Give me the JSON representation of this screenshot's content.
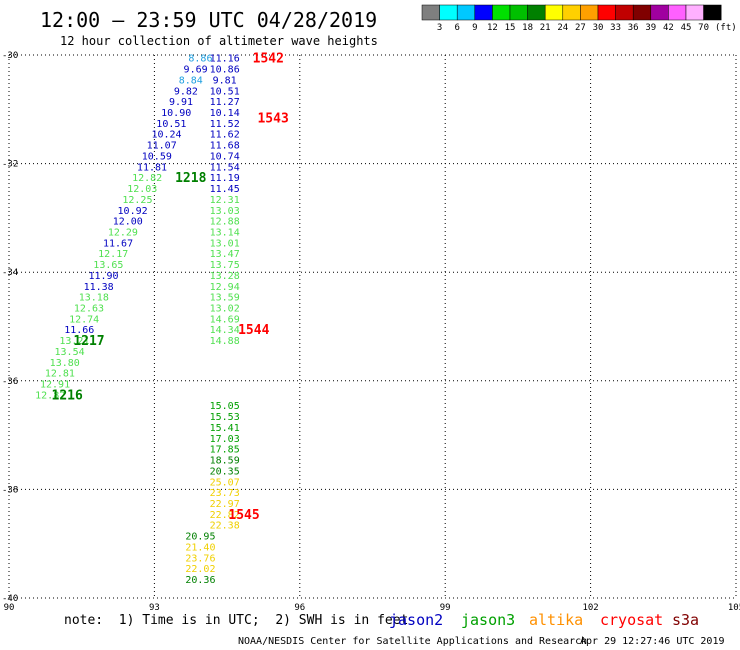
{
  "header": {
    "title": "12:00 – 23:59 UTC 04/28/2019",
    "subtitle": "12 hour collection of altimeter wave heights"
  },
  "legend": {
    "unit": "(ft)",
    "bins": [
      {
        "color": "#7f7f7f",
        "label": "3"
      },
      {
        "color": "#00ffff",
        "label": "6"
      },
      {
        "color": "#00c8ff",
        "label": "9"
      },
      {
        "color": "#0000ff",
        "label": "12"
      },
      {
        "color": "#00e000",
        "label": "15"
      },
      {
        "color": "#00c000",
        "label": "18"
      },
      {
        "color": "#008000",
        "label": "21"
      },
      {
        "color": "#ffff00",
        "label": "24"
      },
      {
        "color": "#ffd000",
        "label": "27"
      },
      {
        "color": "#ffa000",
        "label": "30"
      },
      {
        "color": "#ff0000",
        "label": "33"
      },
      {
        "color": "#c00000",
        "label": "36"
      },
      {
        "color": "#800000",
        "label": "39"
      },
      {
        "color": "#a000a0",
        "label": "42"
      },
      {
        "color": "#ff60ff",
        "label": "45"
      },
      {
        "color": "#ffb0ff",
        "label": "70"
      },
      {
        "color": "#000000",
        "label": ""
      }
    ]
  },
  "map": {
    "xlim": [
      90,
      105
    ],
    "ylim": [
      -40,
      -30
    ],
    "xticks": [
      90,
      93,
      96,
      99,
      102,
      105
    ],
    "yticks": [
      -30,
      -32,
      -34,
      -36,
      -38,
      -40
    ],
    "xtick_labels": [
      "90",
      "93",
      "96",
      "99",
      "102",
      "105"
    ],
    "ytick_labels": [
      "-30",
      "-32",
      "-34",
      "-36",
      "-38",
      "-40"
    ],
    "grid": "dotted"
  },
  "colors": {
    "c_lightblue": "#20a0e0",
    "c_navy": "#0000c0",
    "c_lightgreen": "#50e050",
    "c_green": "#00a000",
    "c_darkgreen": "#008000",
    "c_yellow": "#f0d000",
    "c_orange": "#f09000",
    "c_red": "#ff0000"
  },
  "observations": [
    {
      "lon": 93.95,
      "lat": -30.05,
      "value": "8.86",
      "color": "c_lightblue"
    },
    {
      "lon": 94.45,
      "lat": -30.05,
      "value": "11.16",
      "color": "c_navy"
    },
    {
      "lon": 93.85,
      "lat": -30.25,
      "value": "9.69",
      "color": "c_navy"
    },
    {
      "lon": 94.45,
      "lat": -30.25,
      "value": "10.86",
      "color": "c_navy"
    },
    {
      "lon": 93.75,
      "lat": -30.45,
      "value": "8.84",
      "color": "c_lightblue"
    },
    {
      "lon": 94.45,
      "lat": -30.45,
      "value": "9.81",
      "color": "c_navy"
    },
    {
      "lon": 93.65,
      "lat": -30.65,
      "value": "9.82",
      "color": "c_navy"
    },
    {
      "lon": 94.45,
      "lat": -30.65,
      "value": "10.51",
      "color": "c_navy"
    },
    {
      "lon": 93.55,
      "lat": -30.85,
      "value": "9.91",
      "color": "c_navy"
    },
    {
      "lon": 94.45,
      "lat": -30.85,
      "value": "11.27",
      "color": "c_navy"
    },
    {
      "lon": 93.45,
      "lat": -31.05,
      "value": "10.90",
      "color": "c_navy"
    },
    {
      "lon": 94.45,
      "lat": -31.05,
      "value": "10.14",
      "color": "c_navy"
    },
    {
      "lon": 93.35,
      "lat": -31.25,
      "value": "10.51",
      "color": "c_navy"
    },
    {
      "lon": 94.45,
      "lat": -31.25,
      "value": "11.52",
      "color": "c_navy"
    },
    {
      "lon": 93.25,
      "lat": -31.45,
      "value": "10.24",
      "color": "c_navy"
    },
    {
      "lon": 94.45,
      "lat": -31.45,
      "value": "11.62",
      "color": "c_navy"
    },
    {
      "lon": 93.15,
      "lat": -31.65,
      "value": "11.07",
      "color": "c_navy"
    },
    {
      "lon": 94.45,
      "lat": -31.65,
      "value": "11.68",
      "color": "c_navy"
    },
    {
      "lon": 93.05,
      "lat": -31.85,
      "value": "10.59",
      "color": "c_navy"
    },
    {
      "lon": 94.45,
      "lat": -31.85,
      "value": "10.74",
      "color": "c_navy"
    },
    {
      "lon": 92.95,
      "lat": -32.05,
      "value": "11.81",
      "color": "c_navy"
    },
    {
      "lon": 94.45,
      "lat": -32.05,
      "value": "11.54",
      "color": "c_navy"
    },
    {
      "lon": 92.85,
      "lat": -32.25,
      "value": "12.82",
      "color": "c_lightgreen"
    },
    {
      "lon": 94.45,
      "lat": -32.25,
      "value": "11.19",
      "color": "c_navy"
    },
    {
      "lon": 92.75,
      "lat": -32.45,
      "value": "12.03",
      "color": "c_lightgreen"
    },
    {
      "lon": 94.45,
      "lat": -32.45,
      "value": "11.45",
      "color": "c_navy"
    },
    {
      "lon": 92.65,
      "lat": -32.65,
      "value": "12.25",
      "color": "c_lightgreen"
    },
    {
      "lon": 94.45,
      "lat": -32.65,
      "value": "12.31",
      "color": "c_lightgreen"
    },
    {
      "lon": 92.55,
      "lat": -32.85,
      "value": "10.92",
      "color": "c_navy"
    },
    {
      "lon": 94.45,
      "lat": -32.85,
      "value": "13.03",
      "color": "c_lightgreen"
    },
    {
      "lon": 92.45,
      "lat": -33.05,
      "value": "12.00",
      "color": "c_navy"
    },
    {
      "lon": 94.45,
      "lat": -33.05,
      "value": "12.88",
      "color": "c_lightgreen"
    },
    {
      "lon": 92.35,
      "lat": -33.25,
      "value": "12.29",
      "color": "c_lightgreen"
    },
    {
      "lon": 94.45,
      "lat": -33.25,
      "value": "13.14",
      "color": "c_lightgreen"
    },
    {
      "lon": 92.25,
      "lat": -33.45,
      "value": "11.67",
      "color": "c_navy"
    },
    {
      "lon": 94.45,
      "lat": -33.45,
      "value": "13.01",
      "color": "c_lightgreen"
    },
    {
      "lon": 92.15,
      "lat": -33.65,
      "value": "12.17",
      "color": "c_lightgreen"
    },
    {
      "lon": 94.45,
      "lat": -33.65,
      "value": "13.47",
      "color": "c_lightgreen"
    },
    {
      "lon": 92.05,
      "lat": -33.85,
      "value": "13.65",
      "color": "c_lightgreen"
    },
    {
      "lon": 94.45,
      "lat": -33.85,
      "value": "13.75",
      "color": "c_lightgreen"
    },
    {
      "lon": 91.95,
      "lat": -34.05,
      "value": "11.90",
      "color": "c_navy"
    },
    {
      "lon": 94.45,
      "lat": -34.05,
      "value": "13.28",
      "color": "c_lightgreen"
    },
    {
      "lon": 91.85,
      "lat": -34.25,
      "value": "11.38",
      "color": "c_navy"
    },
    {
      "lon": 94.45,
      "lat": -34.25,
      "value": "12.94",
      "color": "c_lightgreen"
    },
    {
      "lon": 91.75,
      "lat": -34.45,
      "value": "13.18",
      "color": "c_lightgreen"
    },
    {
      "lon": 94.45,
      "lat": -34.45,
      "value": "13.59",
      "color": "c_lightgreen"
    },
    {
      "lon": 91.65,
      "lat": -34.65,
      "value": "12.63",
      "color": "c_lightgreen"
    },
    {
      "lon": 94.45,
      "lat": -34.65,
      "value": "13.02",
      "color": "c_lightgreen"
    },
    {
      "lon": 91.55,
      "lat": -34.85,
      "value": "12.74",
      "color": "c_lightgreen"
    },
    {
      "lon": 94.45,
      "lat": -34.85,
      "value": "14.69",
      "color": "c_lightgreen"
    },
    {
      "lon": 91.45,
      "lat": -35.05,
      "value": "11.66",
      "color": "c_navy"
    },
    {
      "lon": 94.45,
      "lat": -35.05,
      "value": "14.34",
      "color": "c_lightgreen"
    },
    {
      "lon": 91.35,
      "lat": -35.25,
      "value": "13.21",
      "color": "c_lightgreen"
    },
    {
      "lon": 94.45,
      "lat": -35.25,
      "value": "14.88",
      "color": "c_lightgreen"
    },
    {
      "lon": 91.25,
      "lat": -35.45,
      "value": "13.54",
      "color": "c_lightgreen"
    },
    {
      "lon": 91.15,
      "lat": -35.65,
      "value": "13.80",
      "color": "c_lightgreen"
    },
    {
      "lon": 91.05,
      "lat": -35.85,
      "value": "12.81",
      "color": "c_lightgreen"
    },
    {
      "lon": 90.95,
      "lat": -36.05,
      "value": "12.91",
      "color": "c_lightgreen"
    },
    {
      "lon": 90.85,
      "lat": -36.25,
      "value": "12.82",
      "color": "c_lightgreen"
    },
    {
      "lon": 94.45,
      "lat": -36.45,
      "value": "15.05",
      "color": "c_green"
    },
    {
      "lon": 94.45,
      "lat": -36.65,
      "value": "15.53",
      "color": "c_green"
    },
    {
      "lon": 94.45,
      "lat": -36.85,
      "value": "15.41",
      "color": "c_green"
    },
    {
      "lon": 94.45,
      "lat": -37.05,
      "value": "17.03",
      "color": "c_green"
    },
    {
      "lon": 94.45,
      "lat": -37.25,
      "value": "17.85",
      "color": "c_green"
    },
    {
      "lon": 94.45,
      "lat": -37.45,
      "value": "18.59",
      "color": "c_darkgreen"
    },
    {
      "lon": 94.45,
      "lat": -37.65,
      "value": "20.35",
      "color": "c_darkgreen"
    },
    {
      "lon": 94.45,
      "lat": -37.85,
      "value": "25.07",
      "color": "c_yellow"
    },
    {
      "lon": 94.45,
      "lat": -38.05,
      "value": "23.73",
      "color": "c_yellow"
    },
    {
      "lon": 94.45,
      "lat": -38.25,
      "value": "22.97",
      "color": "c_yellow"
    },
    {
      "lon": 94.45,
      "lat": -38.45,
      "value": "22.82",
      "color": "c_yellow"
    },
    {
      "lon": 94.45,
      "lat": -38.65,
      "value": "22.38",
      "color": "c_yellow"
    },
    {
      "lon": 93.95,
      "lat": -38.85,
      "value": "20.95",
      "color": "c_darkgreen"
    },
    {
      "lon": 93.95,
      "lat": -39.05,
      "value": "21.40",
      "color": "c_yellow"
    },
    {
      "lon": 93.95,
      "lat": -39.25,
      "value": "23.76",
      "color": "c_yellow"
    },
    {
      "lon": 93.95,
      "lat": -39.45,
      "value": "22.02",
      "color": "c_yellow"
    },
    {
      "lon": 93.95,
      "lat": -39.65,
      "value": "20.36",
      "color": "c_darkgreen"
    }
  ],
  "pass_labels": [
    {
      "lon": 95.35,
      "lat": -30.05,
      "text": "1542",
      "color": "c_red"
    },
    {
      "lon": 95.45,
      "lat": -31.15,
      "text": "1543",
      "color": "c_red"
    },
    {
      "lon": 93.75,
      "lat": -32.25,
      "text": "1218",
      "color": "c_darkgreen"
    },
    {
      "lon": 91.65,
      "lat": -35.25,
      "text": "1217",
      "color": "c_darkgreen"
    },
    {
      "lon": 95.05,
      "lat": -35.05,
      "text": "1544",
      "color": "c_red"
    },
    {
      "lon": 91.2,
      "lat": -36.25,
      "text": "1216",
      "color": "c_darkgreen"
    },
    {
      "lon": 94.85,
      "lat": -38.45,
      "text": "1545",
      "color": "c_red"
    }
  ],
  "footer": {
    "note": "note:  1) Time is in UTC;  2) SWH is in feet",
    "satellites": [
      {
        "name": "jason2",
        "color": "#0000c0"
      },
      {
        "name": "jason3",
        "color": "#00a000"
      },
      {
        "name": "altika",
        "color": "#ff9000"
      },
      {
        "name": "cryosat",
        "color": "#ff0000"
      },
      {
        "name": "s3a",
        "color": "#800000"
      }
    ],
    "credit": "NOAA/NESDIS Center for Satellite Applications and Research",
    "timestamp": "Apr 29 12:27:46 UTC 2019"
  }
}
